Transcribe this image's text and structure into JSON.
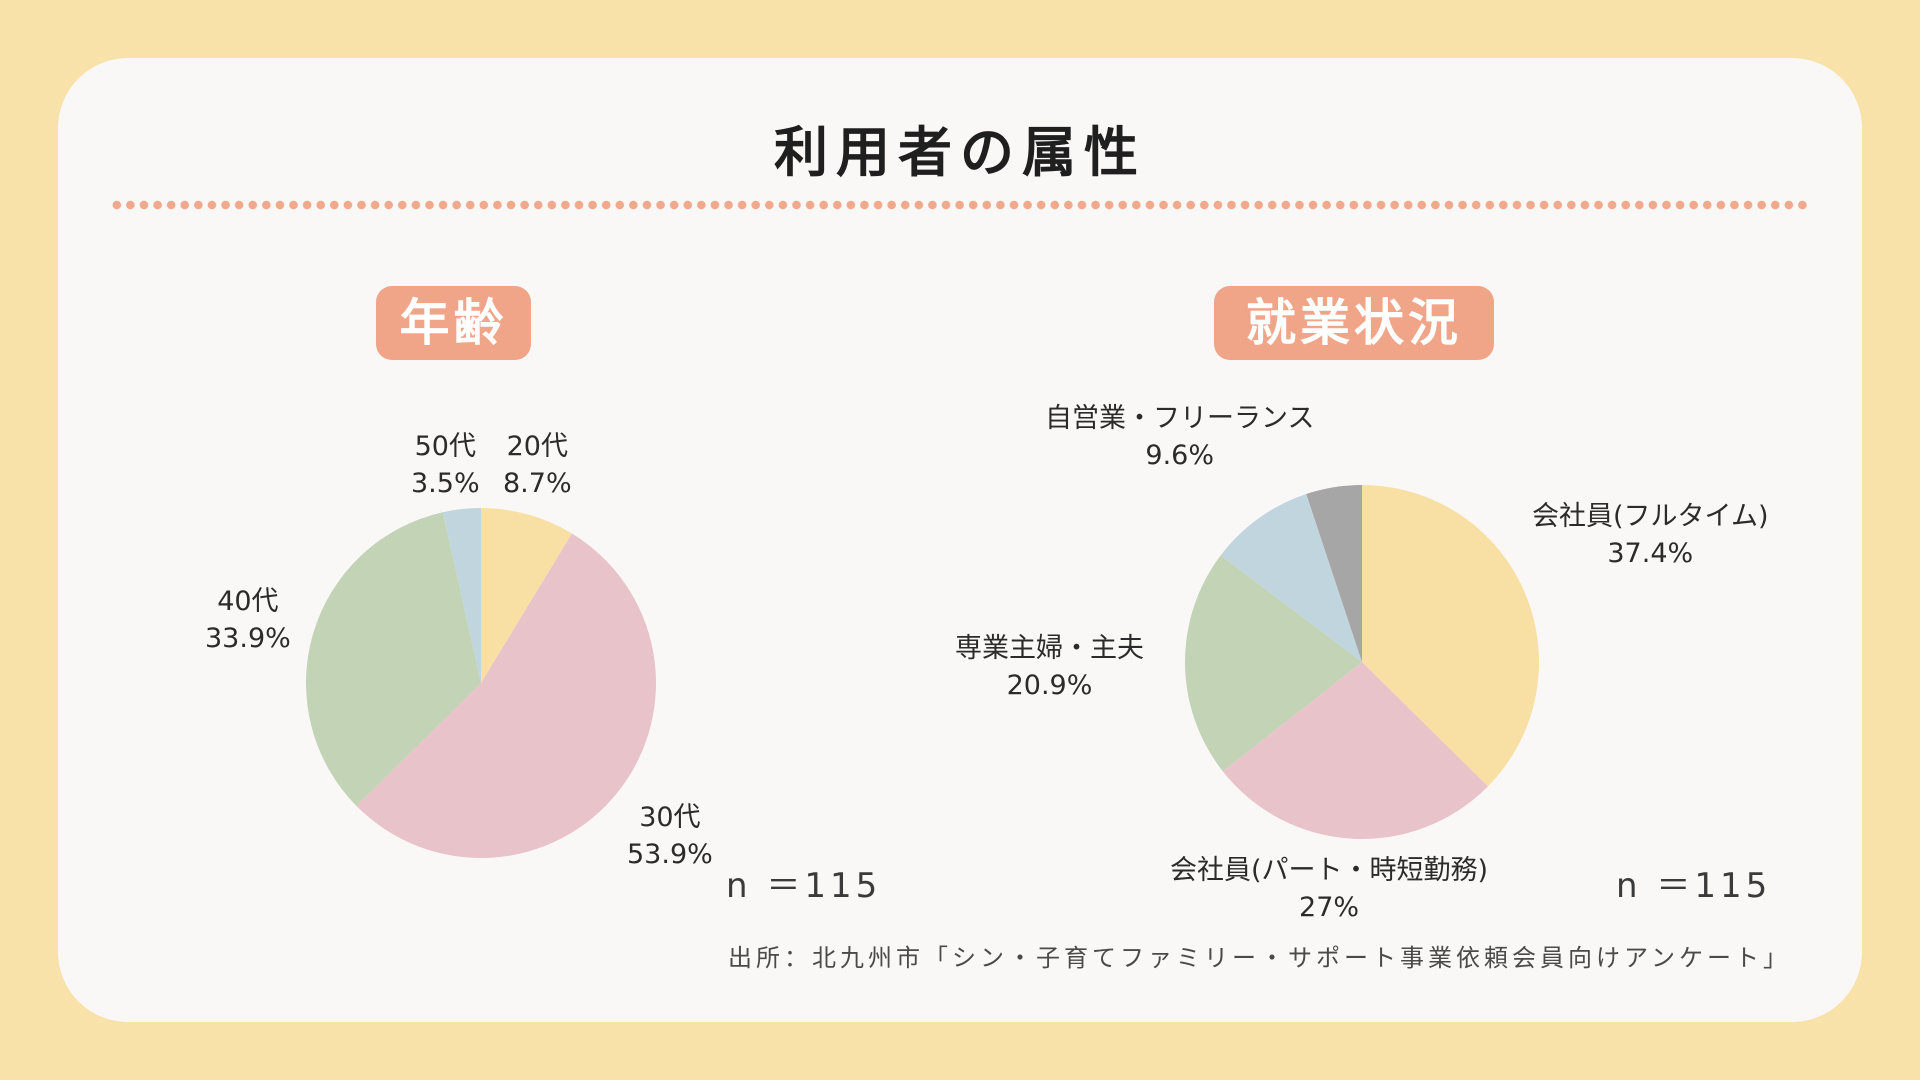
{
  "page": {
    "title": "利用者の属性",
    "source": "出所：北九州市「シン・子育てファミリー・サポート事業依頼会員向けアンケート」"
  },
  "colors": {
    "background": "#f8e2a9",
    "card": "#faf8f7",
    "accent": "#f0a488",
    "dots": "#f0a98b"
  },
  "chart_data": [
    {
      "type": "pie",
      "title": "年齢",
      "n_label": "n ＝115",
      "start": "12 o'clock",
      "direction": "clockwise",
      "slices": [
        {
          "name": "20代",
          "value": 8.7,
          "label": "8.7%",
          "color": "#f8e0a4"
        },
        {
          "name": "30代",
          "value": 53.9,
          "label": "53.9%",
          "color": "#e8c3ca"
        },
        {
          "name": "40代",
          "value": 33.9,
          "label": "33.9%",
          "color": "#c2d3b6"
        },
        {
          "name": "50代",
          "value": 3.5,
          "label": "3.5%",
          "color": "#c0d5dd"
        }
      ]
    },
    {
      "type": "pie",
      "title": "就業状況",
      "n_label": "n ＝115",
      "start": "12 o'clock",
      "direction": "clockwise",
      "slices": [
        {
          "name": "会社員(フルタイム)",
          "value": 37.4,
          "label": "37.4%",
          "color": "#f8e0a4"
        },
        {
          "name": "会社員(パート・時短勤務)",
          "value": 27,
          "label": "27%",
          "color": "#e8c3ca"
        },
        {
          "name": "専業主婦・主夫",
          "value": 20.9,
          "label": "20.9%",
          "color": "#c2d3b6"
        },
        {
          "name": "自営業・フリーランス",
          "value": 9.6,
          "label": "9.6%",
          "color": "#c0d5dd"
        },
        {
          "name": "",
          "value": 5.1,
          "label": "",
          "color": "#a6a6a6"
        }
      ]
    }
  ]
}
